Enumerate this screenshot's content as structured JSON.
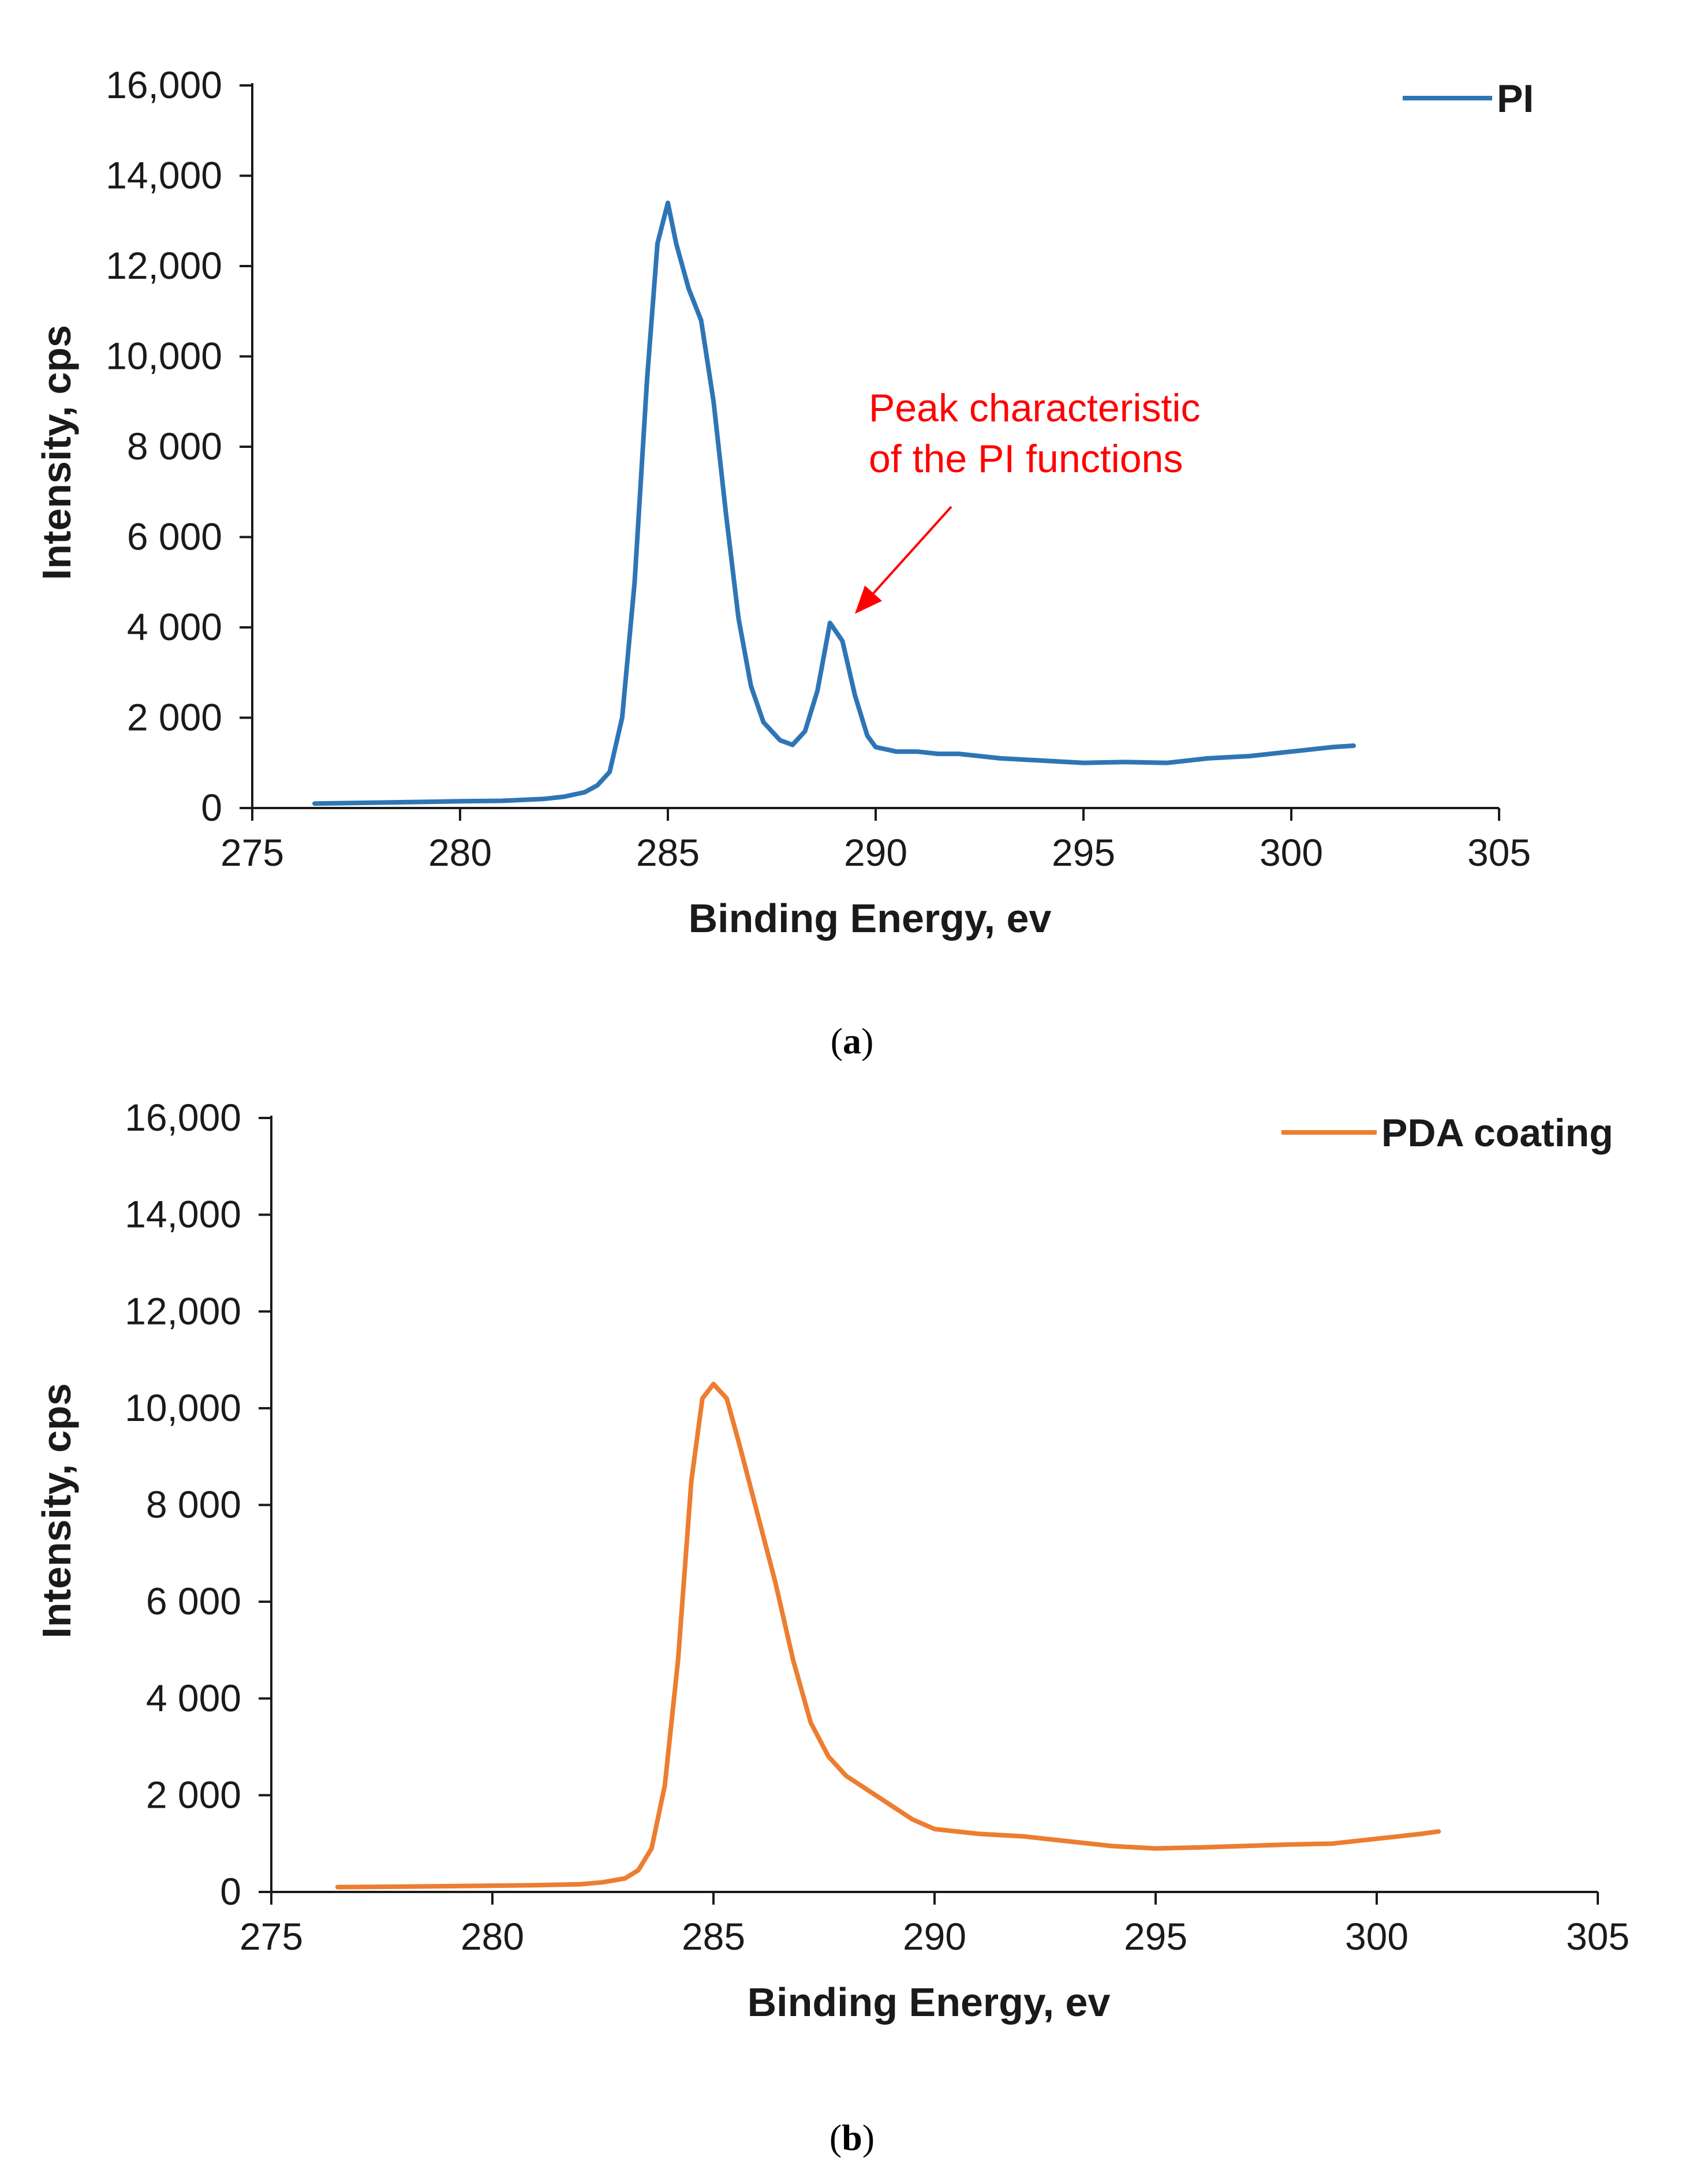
{
  "chart_data": [
    {
      "type": "line",
      "caption_letter": "a",
      "xlabel": "Binding Energy, ev",
      "ylabel": "Intensity, cps",
      "xlim": [
        275,
        305
      ],
      "ylim": [
        0,
        16000
      ],
      "x_ticks": [
        275,
        280,
        285,
        290,
        295,
        300,
        305
      ],
      "y_ticks": [
        0,
        2000,
        4000,
        6000,
        8000,
        10000,
        12000,
        14000,
        16000
      ],
      "x_tick_labels": [
        "275",
        "280",
        "285",
        "290",
        "295",
        "300",
        "305"
      ],
      "y_tick_labels": [
        "0",
        "2 000",
        "4 000",
        "6 000",
        "8 000",
        "10,000",
        "12,000",
        "14,000",
        "16,000"
      ],
      "legend_position": "top-right",
      "annotation": {
        "lines": [
          "Peak characteristic",
          "of the PI functions"
        ],
        "target": [
          289.5,
          4300
        ],
        "color": "#ff0000"
      },
      "series": [
        {
          "name": "PI",
          "color": "#2e75b6",
          "x": [
            276.5,
            278,
            280,
            281,
            282,
            282.5,
            283,
            283.3,
            283.6,
            283.9,
            284.2,
            284.5,
            284.75,
            285,
            285.2,
            285.5,
            285.8,
            286.1,
            286.4,
            286.7,
            287,
            287.3,
            287.7,
            288,
            288.3,
            288.6,
            288.9,
            289.2,
            289.5,
            289.8,
            290,
            290.5,
            291,
            291.5,
            292,
            293,
            294,
            295,
            296,
            297,
            298,
            299,
            300,
            301,
            301.5
          ],
          "y": [
            100,
            120,
            150,
            160,
            200,
            250,
            350,
            500,
            800,
            2000,
            5000,
            9500,
            12500,
            13400,
            12500,
            11500,
            10800,
            9000,
            6500,
            4200,
            2700,
            1900,
            1500,
            1400,
            1700,
            2600,
            4100,
            3700,
            2500,
            1600,
            1350,
            1250,
            1250,
            1200,
            1200,
            1100,
            1050,
            1000,
            1020,
            1000,
            1100,
            1150,
            1250,
            1350,
            1380
          ]
        }
      ]
    },
    {
      "type": "line",
      "caption_letter": "b",
      "xlabel": "Binding Energy, ev",
      "ylabel": "Intensity, cps",
      "xlim": [
        275,
        305
      ],
      "ylim": [
        0,
        16000
      ],
      "x_ticks": [
        275,
        280,
        285,
        290,
        295,
        300,
        305
      ],
      "y_ticks": [
        0,
        2000,
        4000,
        6000,
        8000,
        10000,
        12000,
        14000,
        16000
      ],
      "x_tick_labels": [
        "275",
        "280",
        "285",
        "290",
        "295",
        "300",
        "305"
      ],
      "y_tick_labels": [
        "0",
        "2 000",
        "4 000",
        "6 000",
        "8 000",
        "10,000",
        "12,000",
        "14,000",
        "16,000"
      ],
      "legend_position": "top-right",
      "series": [
        {
          "name": "PDA coating",
          "color": "#ed7d31",
          "x": [
            276.5,
            278,
            280,
            281,
            282,
            282.5,
            283,
            283.3,
            283.6,
            283.9,
            284.2,
            284.5,
            284.75,
            285,
            285.3,
            285.6,
            286,
            286.4,
            286.8,
            287.2,
            287.6,
            288,
            288.5,
            289,
            289.5,
            290,
            290.5,
            291,
            292,
            293,
            294,
            295,
            296,
            297,
            298,
            299,
            300,
            301,
            301.4
          ],
          "y": [
            100,
            110,
            130,
            140,
            160,
            200,
            280,
            450,
            900,
            2200,
            4800,
            8500,
            10200,
            10500,
            10200,
            9200,
            7800,
            6400,
            4800,
            3500,
            2800,
            2400,
            2100,
            1800,
            1500,
            1300,
            1250,
            1200,
            1150,
            1050,
            950,
            900,
            920,
            950,
            980,
            1000,
            1100,
            1200,
            1250
          ]
        }
      ]
    }
  ]
}
